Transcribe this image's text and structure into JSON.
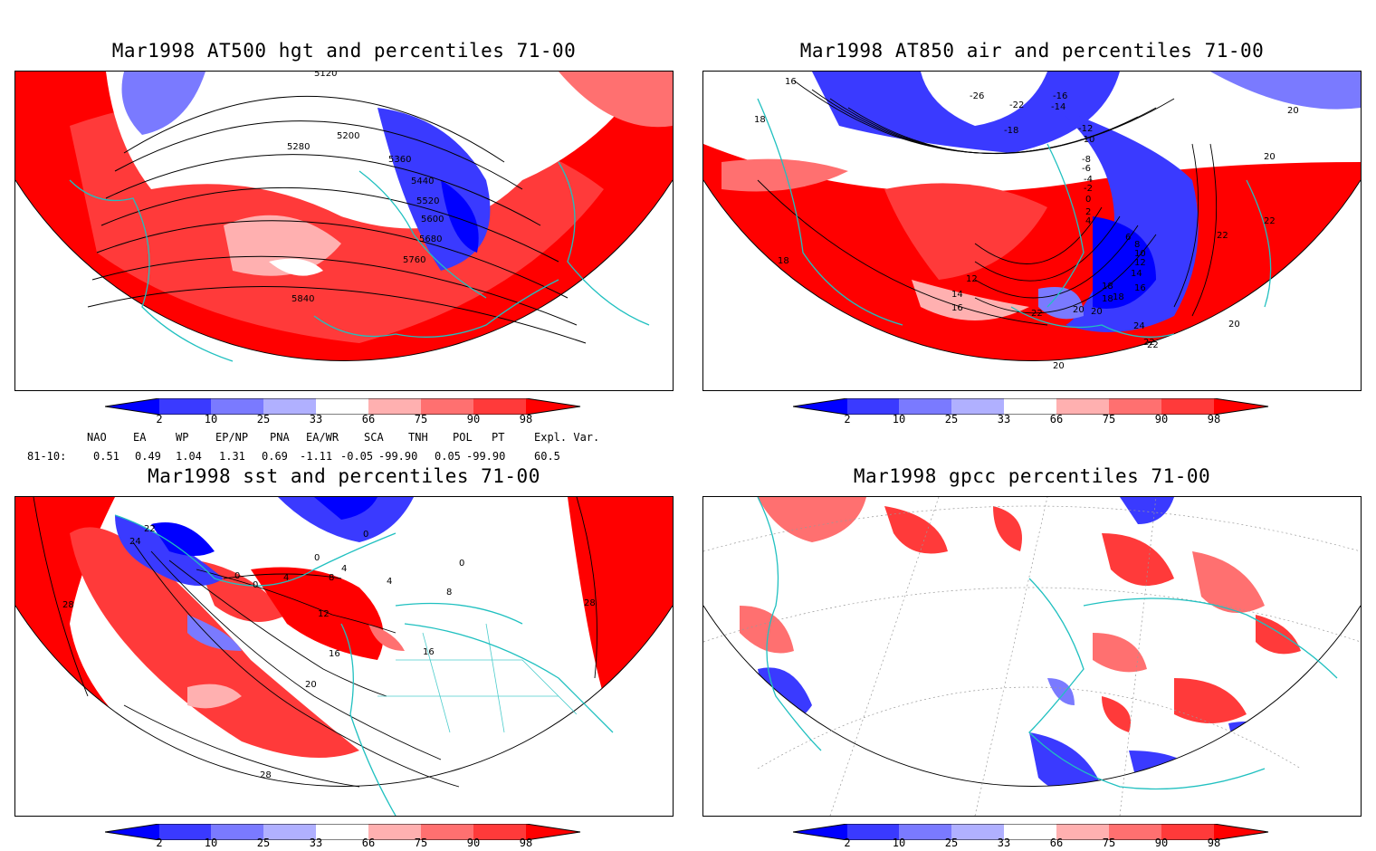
{
  "panels": [
    {
      "title": "Mar1998 AT500 hgt and percentiles 71-00",
      "contour_labels": [
        "5120",
        "5200",
        "5280",
        "5360",
        "5440",
        "5520",
        "5600",
        "5680",
        "5760",
        "5840"
      ]
    },
    {
      "title": "Mar1998 AT850 air and percentiles 71-00",
      "contour_labels": [
        "16",
        "18",
        "18",
        "20",
        "20",
        "22",
        "22",
        "24",
        "22",
        "20",
        "20",
        "18",
        "16",
        "14",
        "12",
        "10",
        "8",
        "6",
        "4",
        "2",
        "0",
        "-2",
        "-4",
        "-6",
        "-8",
        "-10",
        "-12",
        "-14",
        "-16",
        "-18",
        "-22",
        "-26",
        "12",
        "14",
        "16",
        "18",
        "20",
        "22",
        "22",
        "20",
        "18"
      ]
    },
    {
      "title": "Mar1998 sst and percentiles 71-00",
      "contour_labels": [
        "22",
        "24",
        "28",
        "0",
        "0",
        "4",
        "8",
        "12",
        "16",
        "20",
        "28",
        "28",
        "0",
        "4",
        "4",
        "16",
        "8",
        "0",
        "0"
      ]
    },
    {
      "title": "Mar1998 gpcc percentiles 71-00",
      "contour_labels": []
    }
  ],
  "colorbar": {
    "ticks": [
      "2",
      "10",
      "25",
      "33",
      "66",
      "75",
      "90",
      "98"
    ],
    "colors": [
      "#0000ff",
      "#3a3aff",
      "#7a7aff",
      "#b0b0ff",
      "#ffffff",
      "#ffb0b0",
      "#ff7070",
      "#ff3a3a",
      "#ff0000"
    ]
  },
  "indices": {
    "headers": [
      "NAO",
      "EA",
      "WP",
      "EP/NP",
      "PNA",
      "EA/WR",
      "SCA",
      "TNH",
      "POL",
      "PT",
      "Expl. Var."
    ],
    "row_label": "81-10:",
    "values": [
      "0.51",
      "0.49",
      "1.04",
      "1.31",
      "0.69",
      "-1.11",
      "-0.05",
      "-99.90",
      "0.05",
      "-99.90",
      "60.5"
    ]
  },
  "colors": {
    "coast": "#20c0c0",
    "warm": "#ff0000",
    "cool": "#0000ff",
    "contour": "#000000"
  }
}
